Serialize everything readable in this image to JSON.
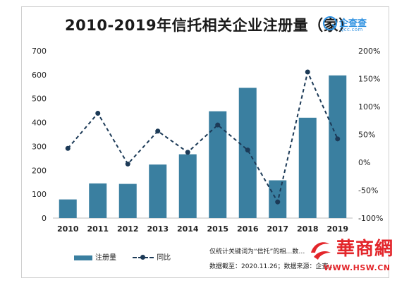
{
  "chart_data": {
    "type": "bar+line",
    "title": "2010-2019年信托相关企业注册量（家）",
    "categories": [
      "2010",
      "2011",
      "2012",
      "2013",
      "2014",
      "2015",
      "2016",
      "2017",
      "2018",
      "2019"
    ],
    "series": [
      {
        "name": "注册量",
        "type": "bar",
        "axis": "left",
        "color": "#3a7fa0",
        "values": [
          78,
          145,
          143,
          224,
          267,
          447,
          545,
          158,
          420,
          597
        ]
      },
      {
        "name": "同比",
        "type": "line",
        "axis": "right",
        "color": "#1c3a57",
        "style": "dashed",
        "values": [
          25,
          88,
          -3,
          56,
          18,
          67,
          22,
          -71,
          162,
          42
        ]
      }
    ],
    "y_left": {
      "range": [
        0,
        700
      ],
      "ticks": [
        "0",
        "100",
        "200",
        "300",
        "400",
        "500",
        "600",
        "700"
      ]
    },
    "y_right": {
      "range": [
        -100,
        200
      ],
      "ticks": [
        "-100%",
        "-50%",
        "0%",
        "50%",
        "100%",
        "150%",
        "200%"
      ]
    },
    "grid": false,
    "legend_position": "bottom-left"
  },
  "logo": {
    "name": "企查查",
    "url": "Qcc.com"
  },
  "notes": {
    "line1": "仅统计关键词为“信托”的相…",
    "line1_tail": "数…",
    "line2": "数据截至：2020.11.26；数据来源：企查…"
  },
  "watermark": {
    "name": "華商網",
    "url": "WWW.HSW.CN"
  },
  "colors": {
    "bar": "#3a7fa0",
    "line": "#1c3a57",
    "logo": "#2b8fe0",
    "watermark": "#e3262b"
  }
}
